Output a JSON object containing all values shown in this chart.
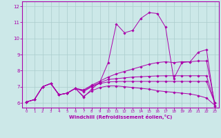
{
  "xlabel": "Windchill (Refroidissement éolien,°C)",
  "xlim": [
    -0.5,
    23.5
  ],
  "ylim": [
    5.7,
    12.3
  ],
  "yticks": [
    6,
    7,
    8,
    9,
    10,
    11,
    12
  ],
  "xticks": [
    0,
    1,
    2,
    3,
    4,
    5,
    6,
    7,
    8,
    9,
    10,
    11,
    12,
    13,
    14,
    15,
    16,
    17,
    18,
    19,
    20,
    21,
    22,
    23
  ],
  "bg_color": "#cce8e8",
  "line_color": "#aa00aa",
  "grid_color": "#aacccc",
  "lines": [
    {
      "x": [
        0,
        1,
        2,
        3,
        4,
        5,
        6,
        7,
        8,
        9,
        10,
        11,
        12,
        13,
        14,
        15,
        16,
        17,
        18,
        19,
        20,
        21,
        22,
        23
      ],
      "y": [
        6.05,
        6.2,
        7.0,
        7.2,
        6.5,
        6.6,
        6.9,
        6.35,
        6.85,
        7.3,
        8.5,
        10.9,
        10.35,
        10.5,
        11.25,
        11.6,
        11.55,
        10.7,
        7.5,
        8.5,
        8.55,
        9.15,
        9.3,
        5.8
      ]
    },
    {
      "x": [
        0,
        1,
        2,
        3,
        4,
        5,
        6,
        7,
        8,
        9,
        10,
        11,
        12,
        13,
        14,
        15,
        16,
        17,
        18,
        19,
        20,
        21,
        22,
        23
      ],
      "y": [
        6.05,
        6.2,
        7.0,
        7.2,
        6.5,
        6.6,
        6.9,
        6.8,
        7.1,
        7.35,
        7.6,
        7.8,
        7.95,
        8.1,
        8.25,
        8.4,
        8.5,
        8.55,
        8.5,
        8.55,
        8.55,
        8.6,
        8.6,
        6.0
      ]
    },
    {
      "x": [
        0,
        1,
        2,
        3,
        4,
        5,
        6,
        7,
        8,
        9,
        10,
        11,
        12,
        13,
        14,
        15,
        16,
        17,
        18,
        19,
        20,
        21,
        22,
        23
      ],
      "y": [
        6.05,
        6.2,
        7.0,
        7.2,
        6.5,
        6.6,
        6.9,
        6.75,
        7.05,
        7.25,
        7.45,
        7.5,
        7.55,
        7.6,
        7.62,
        7.65,
        7.67,
        7.68,
        7.68,
        7.68,
        7.68,
        7.68,
        7.68,
        6.0
      ]
    },
    {
      "x": [
        0,
        1,
        2,
        3,
        4,
        5,
        6,
        7,
        8,
        9,
        10,
        11,
        12,
        13,
        14,
        15,
        16,
        17,
        18,
        19,
        20,
        21,
        22,
        23
      ],
      "y": [
        6.05,
        6.2,
        7.0,
        7.2,
        6.5,
        6.6,
        6.9,
        6.7,
        7.0,
        7.2,
        7.3,
        7.32,
        7.33,
        7.33,
        7.33,
        7.33,
        7.33,
        7.33,
        7.33,
        7.33,
        7.33,
        7.33,
        7.33,
        6.0
      ]
    },
    {
      "x": [
        0,
        1,
        2,
        3,
        4,
        5,
        6,
        7,
        8,
        9,
        10,
        11,
        12,
        13,
        14,
        15,
        16,
        17,
        18,
        19,
        20,
        21,
        22,
        23
      ],
      "y": [
        6.05,
        6.2,
        7.0,
        7.2,
        6.5,
        6.6,
        6.9,
        6.4,
        6.75,
        6.95,
        7.05,
        7.05,
        7.0,
        6.95,
        6.9,
        6.85,
        6.75,
        6.7,
        6.65,
        6.6,
        6.55,
        6.45,
        6.3,
        5.85
      ]
    }
  ]
}
